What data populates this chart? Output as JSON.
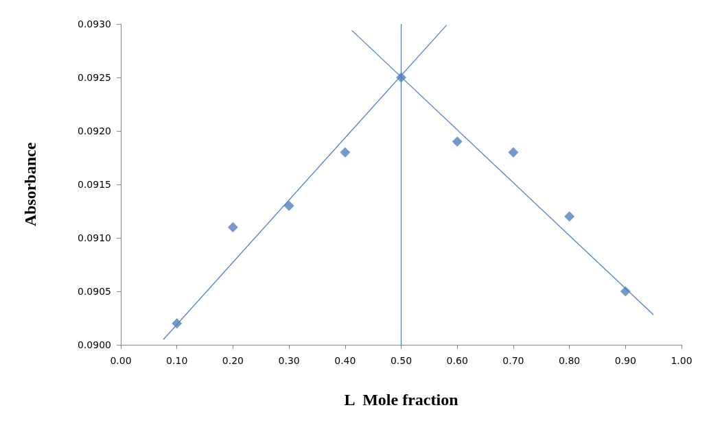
{
  "chart_data": {
    "type": "scatter",
    "xlabel": "L  Mole fraction",
    "ylabel": "Absorbance",
    "xlim": [
      0,
      1
    ],
    "xticks": [
      {
        "value": 0,
        "label": "0.00"
      },
      {
        "value": 0.1,
        "label": "0.10"
      },
      {
        "value": 0.2,
        "label": "0.20"
      },
      {
        "value": 0.3,
        "label": "0.30"
      },
      {
        "value": 0.4,
        "label": "0.40"
      },
      {
        "value": 0.5,
        "label": "0.50"
      },
      {
        "value": 0.6,
        "label": "0.60"
      },
      {
        "value": 0.7,
        "label": "0.70"
      },
      {
        "value": 0.8,
        "label": "0.80"
      },
      {
        "value": 0.9,
        "label": "0.90"
      },
      {
        "value": 1,
        "label": "1.00"
      }
    ],
    "ylim": [
      0.09,
      0.093
    ],
    "yticks": [
      {
        "value": 0.09,
        "label": "0.0900"
      },
      {
        "value": 0.0905,
        "label": "0.0905"
      },
      {
        "value": 0.091,
        "label": "0.0910"
      },
      {
        "value": 0.0915,
        "label": "0.0915"
      },
      {
        "value": 0.092,
        "label": "0.0920"
      },
      {
        "value": 0.0925,
        "label": "0.0925"
      },
      {
        "value": 0.093,
        "label": "0.0930"
      }
    ],
    "grid": false,
    "series": [
      {
        "color": "#4f81bd",
        "marker": "diamond",
        "x": [
          0.1,
          0.2,
          0.3,
          0.4,
          0.5,
          0.6,
          0.7,
          0.8,
          0.9
        ],
        "values": [
          0.0902,
          0.0911,
          0.0913,
          0.0918,
          0.0925,
          0.0919,
          0.0918,
          0.0912,
          0.0905
        ]
      },
      {
        "type": "line",
        "color": "#4f81bd",
        "marker": "none",
        "x": [
          0.076,
          0.581
        ],
        "values": [
          0.09005,
          0.09299
        ]
      },
      {
        "type": "line",
        "color": "#4f81bd",
        "marker": "none",
        "x": [
          0.412,
          0.95
        ],
        "values": [
          0.09294,
          0.09028
        ]
      }
    ],
    "ref_lines": [
      {
        "axis": "x",
        "value": 0.5,
        "color": "#4f81bd"
      }
    ]
  }
}
